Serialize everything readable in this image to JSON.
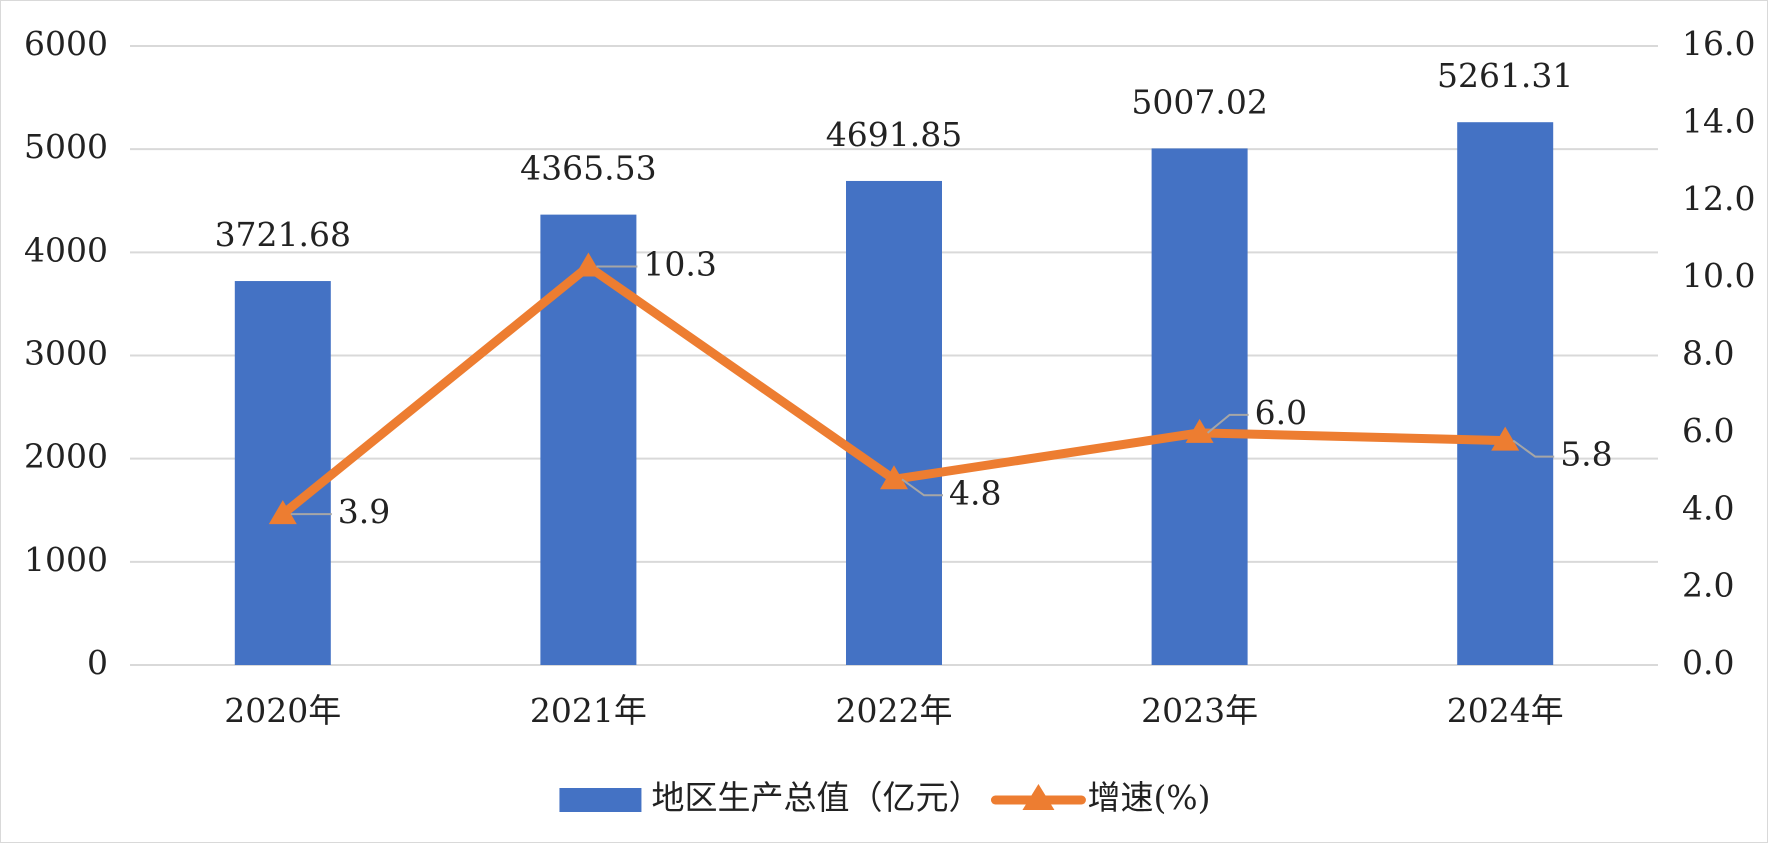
{
  "chart_data": {
    "type": "bar",
    "categories": [
      "2020年",
      "2021年",
      "2022年",
      "2023年",
      "2024年"
    ],
    "series": [
      {
        "name": "地区生产总值（亿元）",
        "type": "bar",
        "color": "#4472c4",
        "values": [
          3721.68,
          4365.53,
          4691.85,
          5007.02,
          5261.31
        ]
      },
      {
        "name": "增速(%)",
        "type": "line",
        "axis": "y2",
        "color": "#ed7d31",
        "values": [
          3.9,
          10.3,
          4.8,
          6.0,
          5.8
        ],
        "value_labels": [
          "3.9",
          "10.3",
          "4.8",
          "6.0",
          "5.8"
        ]
      }
    ],
    "ylim": [
      0,
      6000
    ],
    "yticks": [
      0,
      1000,
      2000,
      3000,
      4000,
      5000,
      6000
    ],
    "y2lim": [
      0,
      16
    ],
    "y2ticks": [
      {
        "value": 0,
        "label": "0.0"
      },
      {
        "value": 2,
        "label": "2.0"
      },
      {
        "value": 4,
        "label": "4.0"
      },
      {
        "value": 6,
        "label": "6.0"
      },
      {
        "value": 8,
        "label": "8.0"
      },
      {
        "value": 10,
        "label": "10.0"
      },
      {
        "value": 12,
        "label": "12.0"
      },
      {
        "value": 14,
        "label": "14.0"
      },
      {
        "value": 16,
        "label": "16.0"
      }
    ],
    "grid": true,
    "legend": "bottom"
  }
}
